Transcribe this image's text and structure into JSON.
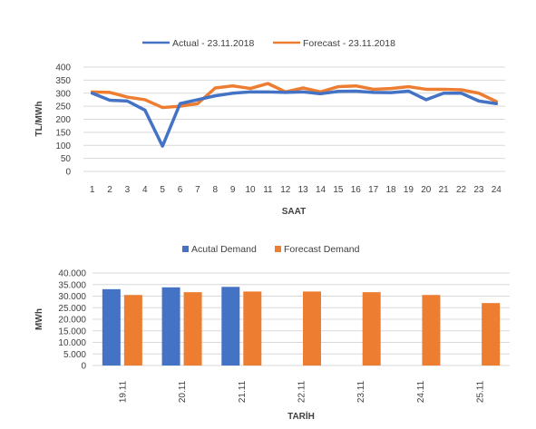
{
  "chart_data": [
    {
      "type": "line",
      "ylabel": "TL/MWh",
      "xlabel": "SAAT",
      "ylim": [
        0,
        400
      ],
      "ytick_labels": [
        "0",
        "50",
        "100",
        "150",
        "200",
        "250",
        "300",
        "350",
        "400"
      ],
      "grid": true,
      "legend_position": "top",
      "x": [
        1,
        2,
        3,
        4,
        5,
        6,
        7,
        8,
        9,
        10,
        11,
        12,
        13,
        14,
        15,
        16,
        17,
        18,
        19,
        20,
        21,
        22,
        23,
        24
      ],
      "x_tick_labels": [
        "1",
        "2",
        "3",
        "4",
        "5",
        "6",
        "7",
        "8",
        "9",
        "10",
        "11",
        "12",
        "13",
        "14",
        "15",
        "16",
        "17",
        "18",
        "19",
        "20",
        "21",
        "22",
        "23",
        "24"
      ],
      "series": [
        {
          "name": "Actual - 23.11.2018",
          "color": "#4472C4",
          "values": [
            300,
            273,
            270,
            235,
            97,
            260,
            275,
            290,
            300,
            305,
            305,
            303,
            305,
            298,
            307,
            308,
            303,
            302,
            308,
            275,
            300,
            300,
            270,
            260
          ]
        },
        {
          "name": "Forecast - 23.11.2018",
          "color": "#ED7D31",
          "values": [
            305,
            303,
            285,
            275,
            245,
            250,
            260,
            320,
            328,
            318,
            337,
            305,
            320,
            305,
            325,
            328,
            315,
            318,
            325,
            315,
            315,
            313,
            300,
            268
          ]
        }
      ]
    },
    {
      "type": "bar",
      "ylabel": "MWh",
      "xlabel": "TARİH",
      "ylim": [
        0,
        40000
      ],
      "ytick_labels": [
        "0",
        "5.000",
        "10.000",
        "15.000",
        "20.000",
        "25.000",
        "30.000",
        "35.000",
        "40.000"
      ],
      "grid": true,
      "legend_position": "top",
      "categories": [
        "19.11",
        "20.11",
        "21.11",
        "22.11",
        "23.11",
        "24.11",
        "25.11"
      ],
      "series": [
        {
          "name": "Acutal Demand",
          "color": "#4472C4",
          "values": [
            33000,
            33800,
            34000,
            null,
            null,
            null,
            null
          ]
        },
        {
          "name": "Forecast Demand",
          "color": "#ED7D31",
          "values": [
            30500,
            31700,
            32000,
            32000,
            31700,
            30500,
            27000
          ]
        }
      ]
    }
  ]
}
